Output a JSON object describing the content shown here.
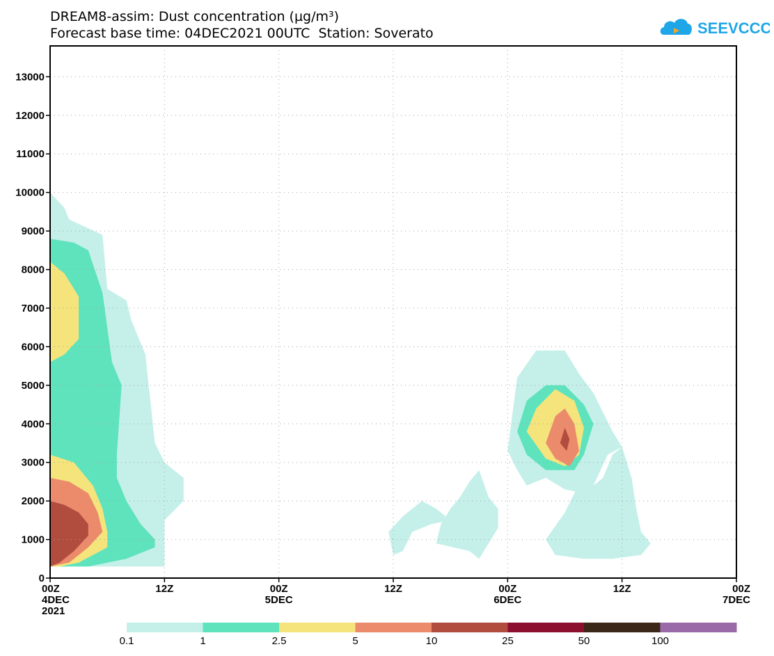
{
  "title_line1": "DREAM8-assim: Dust concentration (µg/m³)",
  "title_line2": "Forecast base time: 04DEC2021 00UTC  Station: Soverato",
  "logo_text": "SEEVCCC",
  "colors": {
    "c0": "#c5f0ea",
    "c1": "#5fe3bd",
    "c2": "#f5e47c",
    "c3": "#eb8b6b",
    "c4": "#b04d3f",
    "c5": "#8c0f30",
    "c6": "#3b2818",
    "c7": "#9a6aa8",
    "logo_blue": "#1ea6e8",
    "logo_orange": "#f6a623"
  },
  "chart_data": {
    "type": "contour-filled",
    "title": "DREAM8-assim: Dust concentration (µg/m³)",
    "subtitle": "Forecast base time: 04DEC2021 00UTC  Station: Soverato",
    "x_axis": {
      "unit": "hours since 04DEC2021 00Z",
      "range": [
        0,
        72
      ],
      "ticks": [
        {
          "hour": 0,
          "line1": "00Z",
          "line2": "4DEC",
          "line3": "2021"
        },
        {
          "hour": 12,
          "line1": "12Z",
          "line2": "",
          "line3": ""
        },
        {
          "hour": 24,
          "line1": "00Z",
          "line2": "5DEC",
          "line3": ""
        },
        {
          "hour": 36,
          "line1": "12Z",
          "line2": "",
          "line3": ""
        },
        {
          "hour": 48,
          "line1": "00Z",
          "line2": "6DEC",
          "line3": ""
        },
        {
          "hour": 60,
          "line1": "12Z",
          "line2": "",
          "line3": ""
        },
        {
          "hour": 72,
          "line1": "00Z",
          "line2": "7DEC",
          "line3": ""
        }
      ],
      "grid": true
    },
    "y_axis": {
      "unit": "m",
      "range": [
        0,
        13800
      ],
      "ticks": [
        "0",
        "1000",
        "2000",
        "3000",
        "4000",
        "5000",
        "6000",
        "7000",
        "8000",
        "9000",
        "10000",
        "11000",
        "12000",
        "13000"
      ],
      "grid": true
    },
    "levels": [
      "0.1",
      "1",
      "2.5",
      "5",
      "10",
      "25",
      "50",
      "100"
    ],
    "level_colors": [
      "#c5f0ea",
      "#5fe3bd",
      "#f5e47c",
      "#eb8b6b",
      "#b04d3f",
      "#8c0f30",
      "#3b2818",
      "#9a6aa8"
    ],
    "contours": [
      {
        "level": 0,
        "points": [
          [
            0,
            300
          ],
          [
            0,
            10000
          ],
          [
            1.5,
            9600
          ],
          [
            2,
            9300
          ],
          [
            5.5,
            8900
          ],
          [
            6,
            7500
          ],
          [
            8,
            7200
          ],
          [
            8.5,
            6700
          ],
          [
            10,
            5800
          ],
          [
            11,
            3500
          ],
          [
            12,
            3000
          ],
          [
            14,
            2600
          ],
          [
            14,
            2000
          ],
          [
            12,
            1500
          ],
          [
            12,
            300
          ]
        ]
      },
      {
        "level": 0,
        "points": [
          [
            35.5,
            1200
          ],
          [
            37,
            1600
          ],
          [
            39,
            2000
          ],
          [
            40.5,
            1800
          ],
          [
            42,
            1500
          ],
          [
            40,
            1400
          ],
          [
            38,
            1200
          ],
          [
            37,
            700
          ],
          [
            36,
            600
          ]
        ]
      },
      {
        "level": 0,
        "points": [
          [
            40.5,
            900
          ],
          [
            44,
            700
          ],
          [
            45,
            500
          ],
          [
            46,
            900
          ],
          [
            47,
            1300
          ],
          [
            47,
            1800
          ],
          [
            46,
            2100
          ],
          [
            45,
            2800
          ],
          [
            44,
            2500
          ],
          [
            43,
            2100
          ],
          [
            42,
            1800
          ],
          [
            41,
            1400
          ]
        ]
      },
      {
        "level": 0,
        "points": [
          [
            48,
            3300
          ],
          [
            49,
            5200
          ],
          [
            51,
            5900
          ],
          [
            54,
            5900
          ],
          [
            55.5,
            5300
          ],
          [
            57,
            4800
          ],
          [
            59,
            3800
          ],
          [
            60,
            3400
          ],
          [
            58.5,
            3200
          ],
          [
            57,
            2400
          ],
          [
            56,
            2200
          ],
          [
            54,
            2300
          ],
          [
            52,
            2600
          ],
          [
            50,
            2400
          ],
          [
            49,
            2800
          ]
        ]
      },
      {
        "level": 0,
        "points": [
          [
            52,
            1000
          ],
          [
            54,
            1700
          ],
          [
            55,
            2200
          ],
          [
            56,
            2700
          ],
          [
            57,
            2400
          ],
          [
            58,
            2600
          ],
          [
            59,
            3200
          ],
          [
            60,
            3400
          ],
          [
            61,
            2600
          ],
          [
            61.5,
            1800
          ],
          [
            62,
            1200
          ],
          [
            63,
            900
          ],
          [
            62,
            600
          ],
          [
            59,
            500
          ],
          [
            56,
            500
          ],
          [
            53,
            600
          ]
        ]
      },
      {
        "level": 1,
        "points": [
          [
            0,
            300
          ],
          [
            0,
            8800
          ],
          [
            2.5,
            8700
          ],
          [
            4,
            8500
          ],
          [
            5.5,
            7400
          ],
          [
            6.5,
            5600
          ],
          [
            7.5,
            5000
          ],
          [
            7,
            3200
          ],
          [
            7,
            2600
          ],
          [
            8,
            2000
          ],
          [
            9.5,
            1400
          ],
          [
            11,
            1000
          ],
          [
            11,
            800
          ],
          [
            8,
            500
          ],
          [
            4,
            300
          ]
        ]
      },
      {
        "level": 1,
        "points": [
          [
            49,
            3800
          ],
          [
            50,
            4600
          ],
          [
            52,
            5000
          ],
          [
            54,
            5000
          ],
          [
            56,
            4500
          ],
          [
            57,
            4000
          ],
          [
            56,
            3200
          ],
          [
            55,
            2800
          ],
          [
            52,
            2800
          ],
          [
            50,
            3200
          ]
        ]
      },
      {
        "level": 2,
        "points": [
          [
            0,
            5600
          ],
          [
            0,
            8200
          ],
          [
            1.5,
            7900
          ],
          [
            3,
            7300
          ],
          [
            3,
            6200
          ],
          [
            1.5,
            5800
          ]
        ]
      },
      {
        "level": 2,
        "points": [
          [
            0,
            300
          ],
          [
            0,
            3200
          ],
          [
            2.5,
            3000
          ],
          [
            4.5,
            2400
          ],
          [
            5.5,
            1800
          ],
          [
            6,
            1200
          ],
          [
            6,
            800
          ],
          [
            3,
            400
          ],
          [
            1,
            300
          ]
        ]
      },
      {
        "level": 2,
        "points": [
          [
            50,
            3800
          ],
          [
            51,
            4400
          ],
          [
            53,
            4900
          ],
          [
            55,
            4600
          ],
          [
            56,
            3900
          ],
          [
            55.5,
            3200
          ],
          [
            54,
            2900
          ],
          [
            52,
            3100
          ]
        ]
      },
      {
        "level": 3,
        "points": [
          [
            0,
            300
          ],
          [
            0,
            2600
          ],
          [
            2,
            2500
          ],
          [
            4,
            2200
          ],
          [
            5,
            1700
          ],
          [
            5.5,
            1200
          ],
          [
            4,
            800
          ],
          [
            2,
            400
          ]
        ]
      },
      {
        "level": 3,
        "points": [
          [
            52,
            3500
          ],
          [
            53,
            4200
          ],
          [
            54,
            4400
          ],
          [
            55,
            4000
          ],
          [
            55.5,
            3300
          ],
          [
            54.5,
            2900
          ],
          [
            53,
            3100
          ]
        ]
      },
      {
        "level": 4,
        "points": [
          [
            0,
            300
          ],
          [
            0,
            2000
          ],
          [
            1.5,
            1900
          ],
          [
            3,
            1700
          ],
          [
            4,
            1400
          ],
          [
            4,
            1100
          ],
          [
            2.5,
            700
          ],
          [
            1,
            400
          ]
        ]
      },
      {
        "level": 4,
        "points": [
          [
            53.5,
            3500
          ],
          [
            54,
            3900
          ],
          [
            54.5,
            3600
          ],
          [
            54.2,
            3300
          ]
        ]
      }
    ]
  }
}
